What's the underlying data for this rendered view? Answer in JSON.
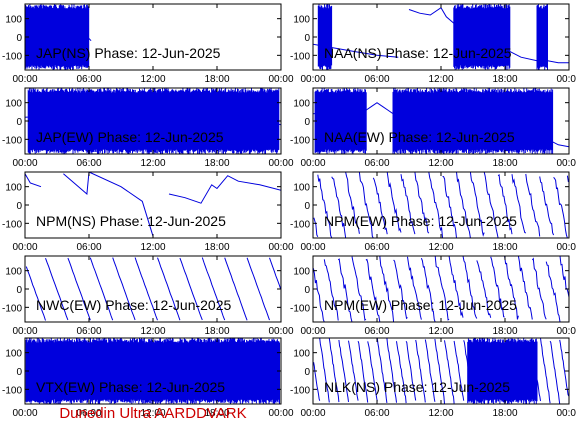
{
  "footer": {
    "text": "Dunedin Ultra AARDDVARK",
    "color": "#cc0000"
  },
  "colors": {
    "trace": "#0000dd",
    "axis": "#000000",
    "background": "#ffffff"
  },
  "chart_data": [
    {
      "type": "line",
      "title": "JAP(NS) Phase: 12-Jun-2025",
      "pattern": "noise_band",
      "x_ticks": [
        "00:00",
        "06:00",
        "12:00",
        "18:00",
        "00:00"
      ],
      "y_ticks": [
        100,
        0,
        -100
      ],
      "ylim": [
        -180,
        180
      ],
      "dense_segments": [
        [
          0.0,
          0.2
        ],
        [
          0.2,
          6.0
        ]
      ],
      "series": [
        {
          "x": [
            0.0,
            1.5,
            3.0,
            4.5,
            6.2
          ],
          "y": [
            20,
            60,
            -40,
            80,
            -20
          ]
        }
      ]
    },
    {
      "type": "line",
      "title": "NAA(NS) Phase: 12-Jun-2025",
      "pattern": "mixed",
      "x_ticks": [
        "00:00",
        "06:00",
        "12:00",
        "18:00",
        "00:00"
      ],
      "y_ticks": [
        100,
        0,
        -100
      ],
      "ylim": [
        -180,
        180
      ],
      "dense_segments": [
        [
          0.5,
          1.8
        ],
        [
          13.2,
          18.5
        ],
        [
          21.0,
          22.0
        ]
      ],
      "series": [
        {
          "x": [
            0,
            2,
            4,
            6,
            8,
            9,
            10,
            11,
            12,
            12.5,
            13.5,
            15,
            17,
            18.5,
            19.5,
            21,
            22,
            23,
            24
          ],
          "y": [
            -40,
            -60,
            -80,
            -100,
            -110,
            150,
            130,
            120,
            160,
            110,
            60,
            20,
            -40,
            -80,
            -110,
            -130,
            -130,
            -140,
            -140
          ]
        }
      ]
    },
    {
      "type": "line",
      "title": "JAP(EW) Phase: 12-Jun-2025",
      "pattern": "noise_band",
      "x_ticks": [
        "00:00",
        "06:00",
        "12:00",
        "18:00",
        "00:00"
      ],
      "y_ticks": [
        100,
        0,
        -100
      ],
      "ylim": [
        -180,
        180
      ],
      "dense_segments": [
        [
          0.3,
          23.8
        ]
      ],
      "series": [
        {
          "x": [
            0,
            6,
            12,
            18,
            24
          ],
          "y": [
            20,
            40,
            -30,
            50,
            -20
          ]
        }
      ]
    },
    {
      "type": "line",
      "title": "NAA(EW) Phase: 12-Jun-2025",
      "pattern": "mixed",
      "x_ticks": [
        "00:00",
        "06:00",
        "12:00",
        "18:00",
        "00:00"
      ],
      "y_ticks": [
        100,
        0,
        -100
      ],
      "ylim": [
        -180,
        180
      ],
      "dense_segments": [
        [
          0.2,
          5.0
        ],
        [
          7.5,
          22.5
        ]
      ],
      "series": [
        {
          "x": [
            0,
            5,
            5.5,
            6,
            6.5,
            7,
            7.5,
            20,
            21,
            22,
            23,
            24
          ],
          "y": [
            40,
            60,
            80,
            100,
            80,
            60,
            40,
            -20,
            -60,
            -100,
            -130,
            -140
          ]
        }
      ]
    },
    {
      "type": "line",
      "title": "NPM(NS) Phase: 12-Jun-2025",
      "pattern": "wrap",
      "x_ticks": [
        "00:00",
        "06:00",
        "12:00",
        "18:00",
        "00:00"
      ],
      "y_ticks": [
        100,
        0,
        -100
      ],
      "ylim": [
        -180,
        180
      ],
      "dense_segments": [],
      "series": [
        {
          "x": [
            0,
            0.5,
            1.5,
            3.5,
            3.6,
            5.8,
            6,
            9,
            11,
            12,
            13.5,
            15,
            16.5,
            17.5,
            18,
            19,
            20,
            22,
            24
          ],
          "y": [
            170,
            120,
            100,
            -170,
            170,
            60,
            180,
            100,
            20,
            -170,
            60,
            40,
            10,
            110,
            90,
            160,
            130,
            110,
            80
          ]
        }
      ]
    },
    {
      "type": "line",
      "title": "NPM(EW) Phase: 12-Jun-2025",
      "pattern": "sawtooth",
      "x_ticks": [
        "00:00",
        "06:00",
        "12:00",
        "18:00",
        "00:00"
      ],
      "y_ticks": [
        100,
        0,
        -100
      ],
      "ylim": [
        -180,
        180
      ],
      "dense_segments": [],
      "series": [
        {
          "period_hours": 1.3,
          "high": 170,
          "low": -170,
          "jitter": 25
        }
      ]
    },
    {
      "type": "line",
      "title": "NWC(EW) Phase: 12-Jun-2025",
      "pattern": "sawtooth",
      "x_ticks": [
        "00:00",
        "06:00",
        "12:00",
        "18:00",
        "00:00"
      ],
      "y_ticks": [
        100,
        0,
        -100
      ],
      "ylim": [
        -180,
        180
      ],
      "dense_segments": [],
      "series": [
        {
          "period_hours": 2.1,
          "high": 170,
          "low": -170,
          "jitter": 2
        }
      ]
    },
    {
      "type": "line",
      "title": "NPM(EW) Phase: 12-Jun-2025",
      "pattern": "sawtooth",
      "x_ticks": [
        "00:00",
        "06:00",
        "12:00",
        "18:00",
        "00:00"
      ],
      "y_ticks": [
        100,
        0,
        -100
      ],
      "ylim": [
        -180,
        180
      ],
      "dense_segments": [],
      "series": [
        {
          "period_hours": 1.3,
          "high": 170,
          "low": -170,
          "jitter": 25
        }
      ]
    },
    {
      "type": "line",
      "title": "VTX(EW) Phase: 12-Jun-2025",
      "pattern": "noise_band",
      "x_ticks": [
        "00:00",
        "06:00",
        "12:00",
        "18:00",
        "00:00"
      ],
      "y_ticks": [
        100,
        0,
        -100
      ],
      "ylim": [
        -180,
        180
      ],
      "dense_segments": [
        [
          0.1,
          23.9
        ]
      ],
      "series": [
        {
          "x": [
            0,
            12,
            24
          ],
          "y": [
            0,
            0,
            0
          ]
        }
      ]
    },
    {
      "type": "line",
      "title": "NLK(NS) Phase: 12-Jun-2025",
      "pattern": "sawtooth_noise",
      "x_ticks": [
        "00:00",
        "06:00",
        "12:00",
        "18:00",
        "00:00"
      ],
      "y_ticks": [
        100,
        0,
        -100
      ],
      "ylim": [
        -180,
        180
      ],
      "dense_segments": [
        [
          14.5,
          21.0
        ]
      ],
      "series": [
        {
          "period_hours": 0.9,
          "high": 170,
          "low": -170,
          "jitter": 10
        }
      ]
    }
  ]
}
